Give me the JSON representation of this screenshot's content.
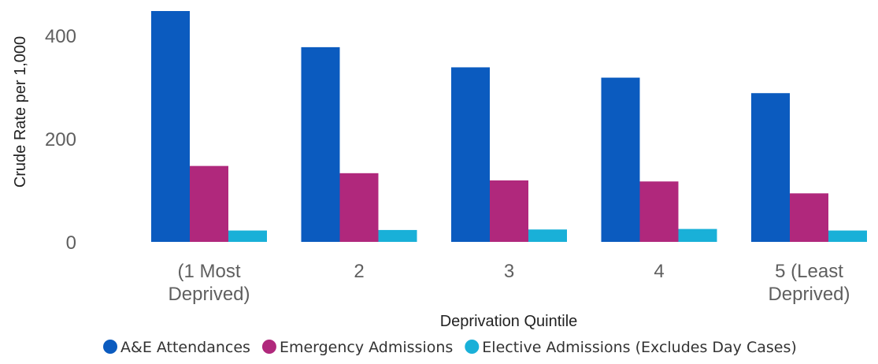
{
  "chart_data": {
    "type": "bar",
    "categories": [
      "(1 Most Deprived)",
      "2",
      "3",
      "4",
      "5 (Least Deprived)"
    ],
    "category_lines": [
      [
        "(1 Most",
        "Deprived)"
      ],
      [
        "2"
      ],
      [
        "3"
      ],
      [
        "4"
      ],
      [
        "5 (Least",
        "Deprived)"
      ]
    ],
    "series": [
      {
        "name": "A&E Attendances",
        "color": "#0b5bbf",
        "values": [
          447,
          377,
          338,
          318,
          288
        ]
      },
      {
        "name": "Emergency Admissions",
        "color": "#b0287c",
        "values": [
          147,
          133,
          119,
          117,
          94
        ]
      },
      {
        "name": "Elective Admissions (Excludes Day Cases)",
        "color": "#19b0d8",
        "values": [
          22,
          23,
          24,
          25,
          22
        ]
      }
    ],
    "xlabel": "Deprivation Quintile",
    "ylabel": "Crude Rate per 1,000",
    "yticks": [
      0,
      200,
      400
    ],
    "ylim": [
      0,
      450
    ],
    "legend_position": "bottom",
    "grid": false
  }
}
